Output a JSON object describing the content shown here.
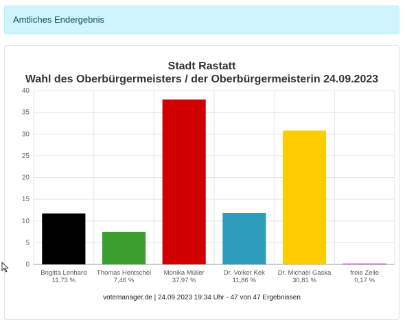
{
  "alert": {
    "text": "Amtliches Endergebnis"
  },
  "chart_data": {
    "type": "bar",
    "title": "Stadt Rastatt",
    "subtitle": "Wahl des Oberbürgermeisters / der Oberbürgermeisterin 24.09.2023",
    "xlabel": "",
    "ylabel": "",
    "ylim": [
      0,
      40
    ],
    "yticks": [
      0,
      5,
      10,
      15,
      20,
      25,
      30,
      35,
      40
    ],
    "grid": true,
    "categories": [
      "Brigitta Lenhard",
      "Thomas Hentschel",
      "Monika Müller",
      "Dr. Volker Kek",
      "Dr. Michael Gaska",
      "freie Zeile"
    ],
    "values": [
      11.73,
      7.46,
      37.97,
      11.86,
      30.81,
      0.17
    ],
    "value_labels": [
      "11,73 %",
      "7,46 %",
      "37,97 %",
      "11,86 %",
      "30,81 %",
      "0,17 %"
    ],
    "colors": [
      "#000000",
      "#3a9f2f",
      "#d10000",
      "#2e9dbb",
      "#ffcc00",
      "#bb2ac7"
    ],
    "footer": "votemanager.de | 24.09.2023 19:34 Uhr - 47 von 47 Ergebnissen"
  }
}
